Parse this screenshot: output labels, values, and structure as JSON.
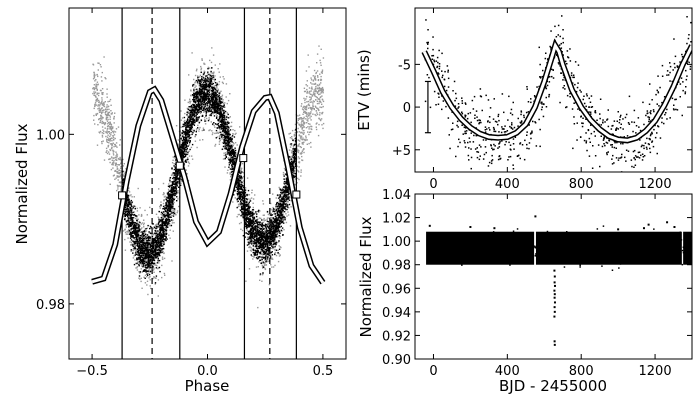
{
  "chart_data": [
    {
      "type": "scatter",
      "panel": "left",
      "title": "",
      "xlabel": "Phase",
      "ylabel": "Normalized Flux",
      "xlim": [
        -0.6,
        0.6
      ],
      "ylim": [
        0.9735,
        1.0149
      ],
      "xticks": [
        -0.5,
        0.0,
        0.5
      ],
      "xtick_labels": [
        "−0.5",
        "0.0",
        "0.5"
      ],
      "yticks": [
        0.98,
        1.0
      ],
      "ytick_labels": [
        "0.98",
        "1.00"
      ],
      "series": [
        {
          "name": "all-data (grey)",
          "color": "#999999",
          "x_range": [
            -0.5,
            0.5
          ],
          "amplitude": 0.0095,
          "mean": 0.9955,
          "scatter": 0.0036
        },
        {
          "name": "binned-data (black)",
          "color": "#000000",
          "x_range": [
            -0.37,
            0.38
          ],
          "amplitude": 0.0092,
          "mean": 0.9958,
          "scatter": 0.0022
        },
        {
          "name": "model",
          "color": "#000000",
          "fill": "#ffffff",
          "x": [
            -0.5,
            -0.45,
            -0.4,
            -0.35,
            -0.3,
            -0.25,
            -0.23,
            -0.2,
            -0.15,
            -0.1,
            -0.05,
            0.0,
            0.05,
            0.1,
            0.15,
            0.2,
            0.25,
            0.27,
            0.3,
            0.35,
            0.4,
            0.45,
            0.5
          ],
          "y": [
            0.9826,
            0.983,
            0.987,
            0.9945,
            1.001,
            1.005,
            1.0053,
            1.004,
            0.9995,
            0.995,
            0.9897,
            0.9872,
            0.9885,
            0.993,
            0.9985,
            1.0027,
            1.0043,
            1.0044,
            1.0025,
            0.996,
            0.989,
            0.9845,
            0.9825
          ]
        }
      ],
      "markers": [
        {
          "x": -0.37,
          "y": 0.9928
        },
        {
          "x": -0.12,
          "y": 0.9963
        },
        {
          "x": 0.155,
          "y": 0.9972
        },
        {
          "x": 0.385,
          "y": 0.9929
        }
      ],
      "vlines_solid": [
        -0.37,
        -0.12,
        0.16,
        0.385
      ],
      "vlines_dashed": [
        -0.24,
        0.27
      ]
    },
    {
      "type": "scatter",
      "panel": "top-right",
      "title": "",
      "xlabel": "",
      "ylabel": "ETV (mins)",
      "xlim": [
        -100,
        1400
      ],
      "ylim": [
        7.6,
        -11.6
      ],
      "xticks": [
        0,
        400,
        800,
        1200
      ],
      "xtick_labels": [
        "0",
        "400",
        "800",
        "1200"
      ],
      "yticks": [
        -5,
        0,
        5
      ],
      "ytick_labels": [
        "-5",
        "0",
        "+5"
      ],
      "errorbar": {
        "x": -30,
        "y": 0,
        "yerr": 3
      },
      "series": [
        {
          "name": "etv-points",
          "color": "#000000",
          "x_range": [
            -50,
            1390
          ],
          "scatter": 2.0
        },
        {
          "name": "etv-model",
          "color": "#000000",
          "fill": "#ffffff",
          "x": [
            -50,
            0,
            50,
            100,
            150,
            200,
            250,
            300,
            350,
            400,
            450,
            500,
            550,
            600,
            640,
            660,
            680,
            700,
            750,
            800,
            850,
            900,
            950,
            1000,
            1050,
            1100,
            1150,
            1200,
            1250,
            1300,
            1350,
            1400
          ],
          "y": [
            -6.5,
            -4.2,
            -1.8,
            0.0,
            1.4,
            2.4,
            3.1,
            3.5,
            3.6,
            3.5,
            3.0,
            2.0,
            0.0,
            -3.0,
            -5.8,
            -7.2,
            -6.5,
            -5.0,
            -2.0,
            0.0,
            1.5,
            2.6,
            3.4,
            3.8,
            3.9,
            3.6,
            2.8,
            1.6,
            -0.2,
            -2.4,
            -5.0,
            -7.2
          ]
        }
      ]
    },
    {
      "type": "scatter",
      "panel": "bottom-right",
      "title": "",
      "xlabel": "BJD - 2455000",
      "ylabel": "Normalized Flux",
      "xlim": [
        -100,
        1400
      ],
      "ylim": [
        0.9,
        1.04
      ],
      "xticks": [
        0,
        400,
        800,
        1200
      ],
      "xtick_labels": [
        "0",
        "400",
        "800",
        "1200"
      ],
      "yticks": [
        0.9,
        0.92,
        0.94,
        0.96,
        0.98,
        1.0,
        1.02,
        1.04
      ],
      "ytick_labels": [
        "0.90",
        "0.92",
        "0.94",
        "0.96",
        "0.98",
        "1.00",
        "1.02",
        "1.04"
      ],
      "series": [
        {
          "name": "light-curve",
          "color": "#000000",
          "x_range": [
            -40,
            1400
          ],
          "band": [
            0.98,
            1.008
          ],
          "gaps": [
            [
              545,
              555
            ],
            [
              1345,
              1352
            ]
          ]
        },
        {
          "name": "transit-dips",
          "color": "#000000",
          "x": [
            655,
            657,
            656,
            658,
            655,
            657,
            656,
            658,
            656,
            657,
            655,
            656,
            657
          ],
          "y": [
            0.975,
            0.97,
            0.965,
            0.962,
            0.958,
            0.955,
            0.952,
            0.948,
            0.944,
            0.94,
            0.936,
            0.915,
            0.912
          ]
        },
        {
          "name": "outliers",
          "color": "#000000",
          "x": [
            -20,
            200,
            552,
            330,
            1000,
            1140,
            1165,
            1265,
            1305
          ],
          "y": [
            1.013,
            1.012,
            1.021,
            1.011,
            1.01,
            1.011,
            1.014,
            1.016,
            1.012
          ]
        }
      ]
    }
  ]
}
